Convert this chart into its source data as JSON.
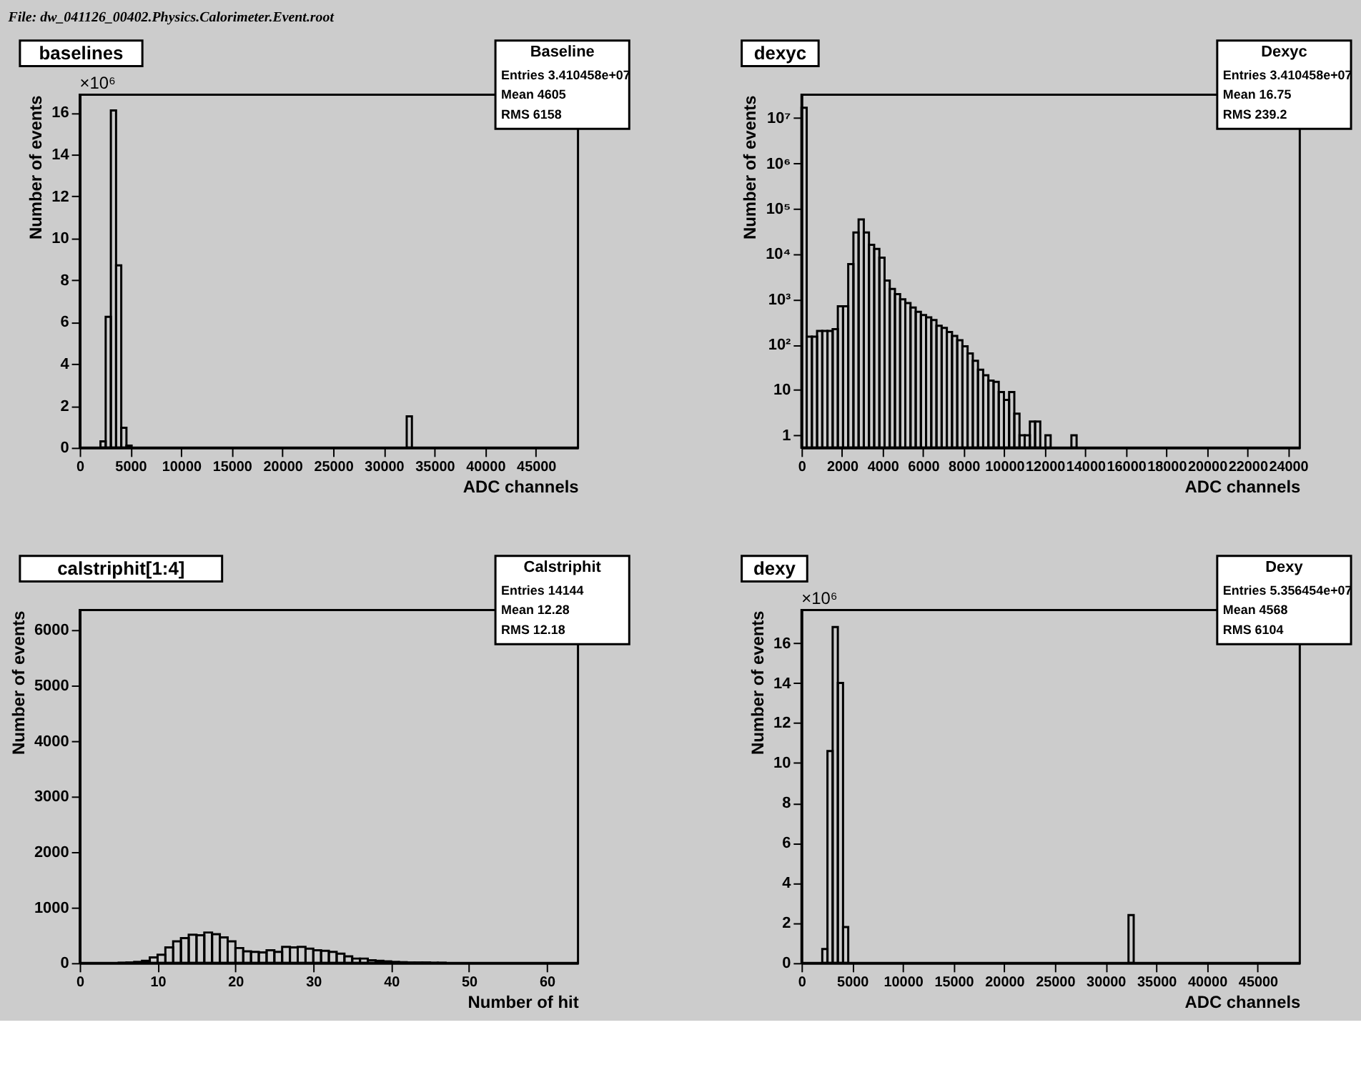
{
  "chart_data": [
    {
      "type": "histogram",
      "title": "baselines",
      "subtitle": "×10⁶",
      "xlabel": "ADC channels",
      "ylabel": "Number of events",
      "legend_title": "Baseline",
      "annotations": [
        "File: dw_041126_00402.Physics.Calorimeter.Event.root",
        "Entries 3.410458e+07",
        "Mean 4605",
        "RMS 6158"
      ],
      "color": "#000000",
      "bins": [
        2048,
        2560,
        3072,
        3584,
        4096,
        4608,
        5120,
        32256,
        32768
      ],
      "values": [
        0.3,
        6.25,
        16.1,
        8.7,
        0.95,
        0.1,
        null,
        1.5
      ],
      "xlim": [
        0,
        49152
      ],
      "xticks": [
        0,
        5000,
        10000,
        15000,
        20000,
        25000,
        30000,
        35000,
        40000,
        45000
      ],
      "ylim": [
        0,
        16.85
      ],
      "yticks": [
        0,
        2,
        4,
        6,
        8,
        10,
        12,
        14,
        16
      ]
    },
    {
      "type": "histogram",
      "title": "dexyc",
      "xlabel": "ADC channels",
      "ylabel": "Number of events",
      "legend_title": "Dexyc",
      "annotations": [
        "Entries 3.410458e+07",
        "Mean 16.75",
        "RMS 239.2"
      ],
      "color": "#000000",
      "log": true,
      "bins": [
        0,
        256,
        512,
        768,
        1024,
        1280,
        1536,
        1792,
        2048,
        2304,
        2560,
        2816,
        3072,
        3328,
        3584,
        3840,
        4096,
        4352,
        4608,
        4864,
        5120,
        5376,
        5632,
        5888,
        6144,
        6400,
        6656,
        6912,
        7168,
        7424,
        7680,
        7936,
        8192,
        8448,
        8704,
        8960,
        9216,
        9472,
        9728,
        9984,
        10240,
        10496,
        10752,
        11008,
        11264,
        11520,
        11776,
        12032,
        12288,
        13312,
        13568
      ],
      "values": [
        17000000,
        150,
        150,
        200,
        200,
        200,
        220,
        700,
        700,
        6000,
        30000,
        58000,
        30000,
        16000,
        13000,
        8300,
        2600,
        1700,
        1300,
        1000,
        830,
        660,
        530,
        450,
        400,
        350,
        260,
        235,
        190,
        155,
        125,
        92,
        64,
        44,
        28,
        21,
        16,
        15,
        9,
        6,
        9,
        3,
        1,
        1,
        2,
        2,
        null,
        1,
        null,
        1
      ],
      "xlim": [
        0,
        24576
      ],
      "xticks": [
        0,
        2000,
        4000,
        6000,
        8000,
        10000,
        12000,
        14000,
        16000,
        18000,
        20000,
        22000,
        24000
      ],
      "ylim": [
        0.53,
        33000000
      ],
      "yticks": [
        1,
        10,
        {
          "value": 100,
          "label": "10²"
        },
        {
          "value": 1000,
          "label": "10³"
        },
        {
          "value": 10000,
          "label": "10⁴"
        },
        {
          "value": 100000,
          "label": "10⁵"
        },
        {
          "value": 1000000,
          "label": "10⁶"
        },
        {
          "value": 10000000,
          "label": "10⁷"
        }
      ]
    },
    {
      "type": "histogram",
      "title": "calstriphit[1:4]",
      "xlabel": "Number of hit",
      "ylabel": "Number of events",
      "legend_title": "Calstriphit",
      "annotations": [
        "Entries 14144",
        "Mean 12.28",
        "RMS 12.18"
      ],
      "color": "#000000",
      "bins": [
        5,
        6,
        7,
        8,
        9,
        10,
        11,
        12,
        13,
        14,
        15,
        16,
        17,
        18,
        19,
        20,
        21,
        22,
        23,
        24,
        25,
        26,
        27,
        28,
        29,
        30,
        31,
        32,
        33,
        34,
        35,
        36,
        37,
        38,
        39,
        40,
        41,
        42,
        43,
        44,
        45,
        46,
        47
      ],
      "values": [
        5,
        10,
        20,
        40,
        100,
        150,
        280,
        390,
        450,
        510,
        500,
        550,
        520,
        460,
        390,
        270,
        210,
        200,
        190,
        230,
        200,
        290,
        280,
        290,
        260,
        230,
        220,
        200,
        170,
        120,
        80,
        80,
        50,
        40,
        30,
        20,
        15,
        10,
        10,
        10,
        5,
        5
      ],
      "xlim": [
        0,
        64
      ],
      "xticks": [
        0,
        10,
        20,
        30,
        40,
        50,
        60
      ],
      "ylim": [
        0,
        6360
      ],
      "yticks": [
        0,
        1000,
        2000,
        3000,
        4000,
        5000,
        6000
      ]
    },
    {
      "type": "histogram",
      "title": "dexy",
      "subtitle": "×10⁶",
      "xlabel": "ADC channels",
      "ylabel": "Number of events",
      "legend_title": "Dexy",
      "annotations": [
        "Entries 5.356454e+07",
        "Mean 4568",
        "RMS 6104"
      ],
      "color": "#000000",
      "bins": [
        2048,
        2560,
        3072,
        3584,
        4096,
        4608,
        32256,
        32768
      ],
      "values": [
        0.7,
        10.6,
        16.8,
        14.0,
        1.8,
        null,
        2.4
      ],
      "xlim": [
        0,
        49152
      ],
      "xticks": [
        0,
        5000,
        10000,
        15000,
        20000,
        25000,
        30000,
        35000,
        40000,
        45000
      ],
      "ylim": [
        0,
        17.65
      ],
      "yticks": [
        0,
        2,
        4,
        6,
        8,
        10,
        12,
        14,
        16
      ]
    }
  ]
}
